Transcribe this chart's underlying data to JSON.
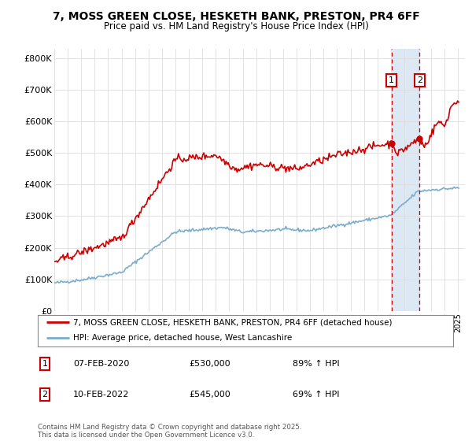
{
  "title_line1": "7, MOSS GREEN CLOSE, HESKETH BANK, PRESTON, PR4 6FF",
  "title_line2": "Price paid vs. HM Land Registry's House Price Index (HPI)",
  "background_color": "#ffffff",
  "grid_color": "#dddddd",
  "red_color": "#cc0000",
  "blue_color": "#7aadcd",
  "shade_color": "#dde8f5",
  "marker1_label": "07-FEB-2020",
  "marker1_price": "£530,000",
  "marker1_hpi": "89% ↑ HPI",
  "marker2_label": "10-FEB-2022",
  "marker2_price": "£545,000",
  "marker2_hpi": "69% ↑ HPI",
  "legend_label_red": "7, MOSS GREEN CLOSE, HESKETH BANK, PRESTON, PR4 6FF (detached house)",
  "legend_label_blue": "HPI: Average price, detached house, West Lancashire",
  "footer": "Contains HM Land Registry data © Crown copyright and database right 2025.\nThis data is licensed under the Open Government Licence v3.0.",
  "ylim": [
    0,
    830000
  ],
  "yticks": [
    0,
    100000,
    200000,
    300000,
    400000,
    500000,
    600000,
    700000,
    800000
  ],
  "ytick_labels": [
    "£0",
    "£100K",
    "£200K",
    "£300K",
    "£400K",
    "£500K",
    "£600K",
    "£700K",
    "£800K"
  ],
  "start_year": 1995,
  "end_year": 2025
}
